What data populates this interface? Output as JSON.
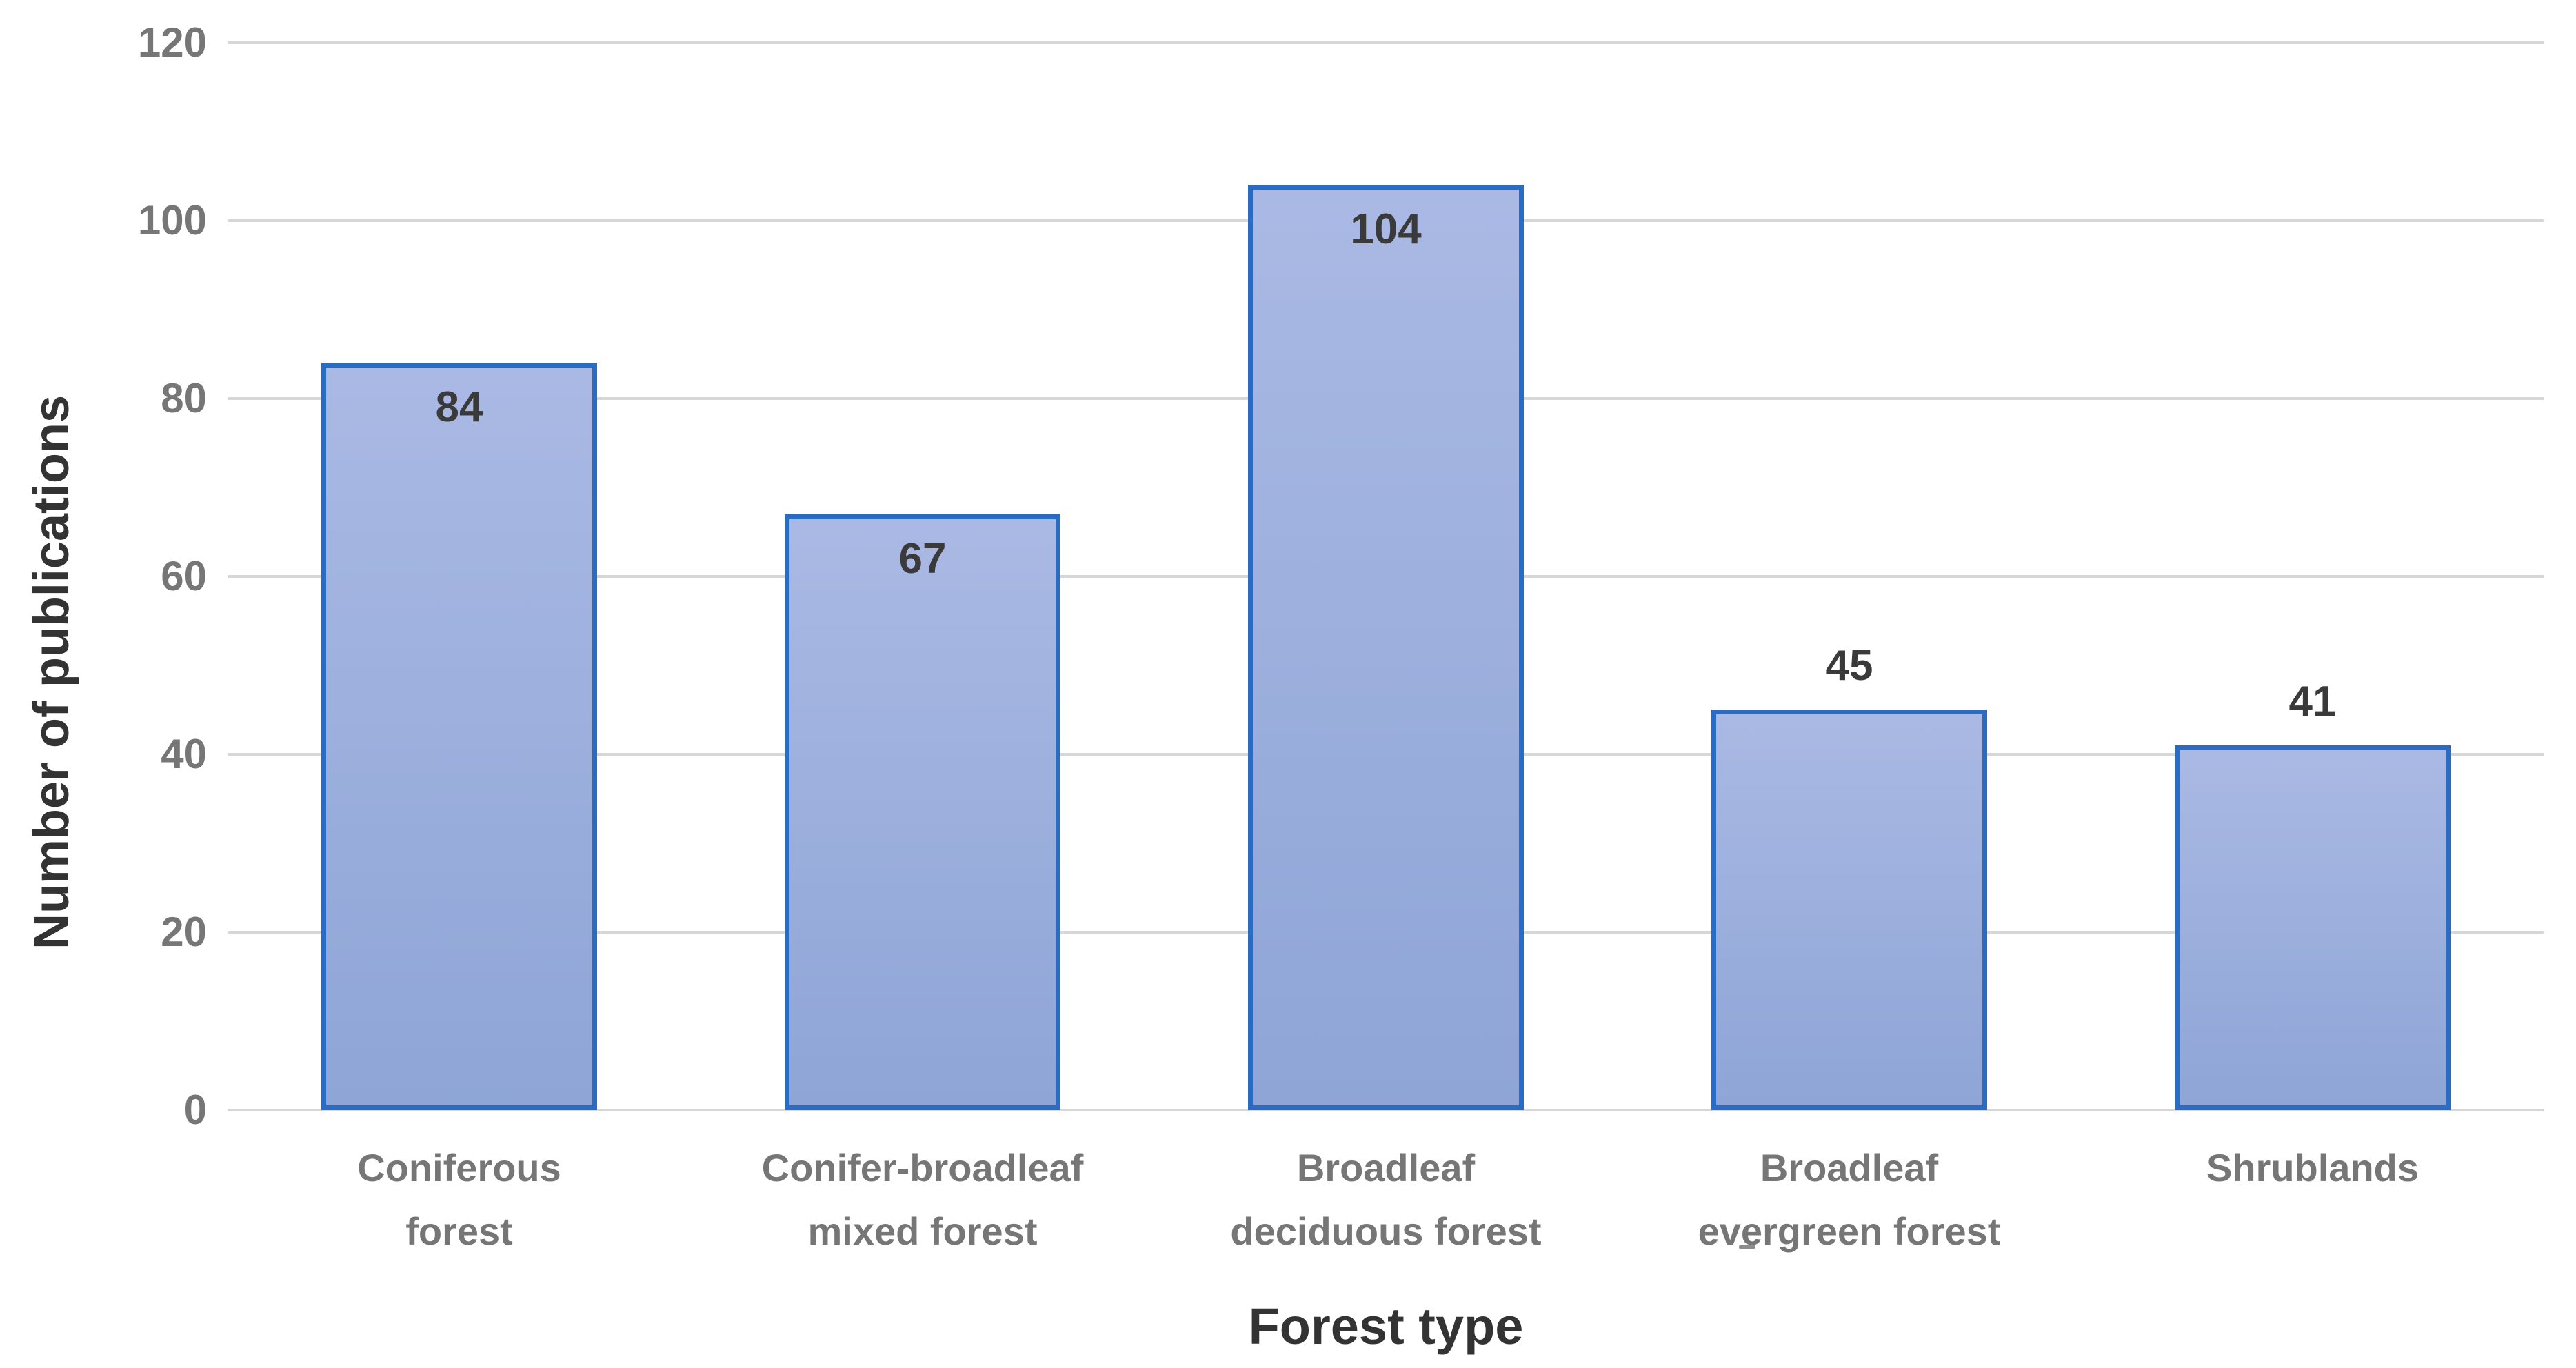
{
  "chart_data": {
    "type": "bar",
    "title": "",
    "categories": [
      "Coniferous\nforest",
      "Conifer-broadleaf\nmixed forest",
      "Broadleaf\ndeciduous forest",
      "Broadleaf\nevergreen forest",
      "Shrublands"
    ],
    "values": [
      84,
      67,
      104,
      45,
      41
    ],
    "value_labels": [
      "84",
      "67",
      "104",
      "45",
      "41"
    ],
    "value_label_placement": [
      "inside",
      "inside",
      "inside",
      "above",
      "above"
    ],
    "xlabel": "Forest type",
    "ylabel": "Number of publications",
    "ylim": [
      0,
      120
    ],
    "yticks": [
      0,
      20,
      40,
      60,
      80,
      100,
      120
    ],
    "grid": "horizontal-only",
    "legend": "none",
    "colors": {
      "background": "#ffffff",
      "bar_fill_top": "#aab9e4",
      "bar_fill_bottom": "#8ea5d6",
      "bar_border": "#2a6bc4",
      "gridline": "#d7d7d7",
      "tick_label": "#767676",
      "category_label": "#767676",
      "value_label": "#3a3a3a",
      "axis_title": "#333333"
    }
  }
}
